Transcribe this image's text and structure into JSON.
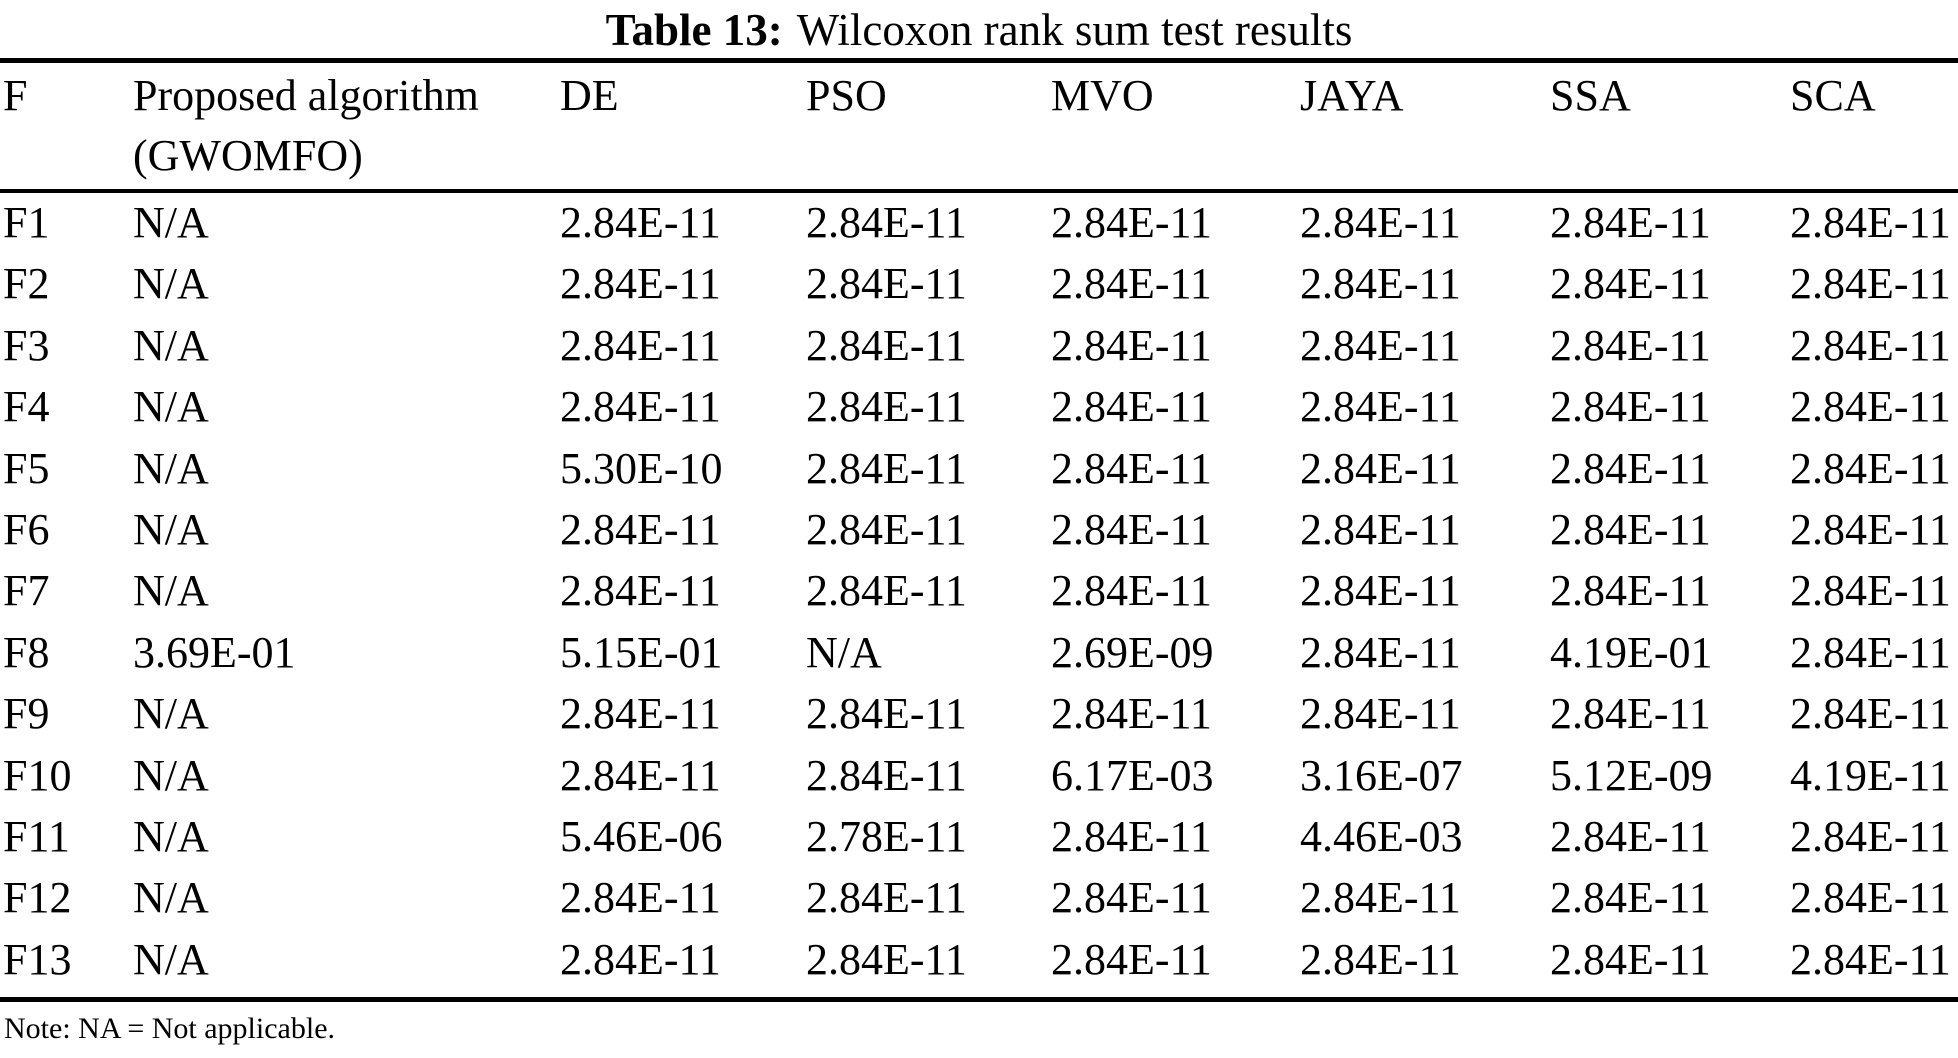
{
  "page": {
    "title_label": "Table 13:",
    "title_text": "Wilcoxon rank sum test results",
    "note": "Note: NA = Not applicable."
  },
  "table": {
    "header": {
      "f": "F",
      "proposed_line1": "Proposed algorithm",
      "proposed_line2": "(GWOMFO)",
      "cols": [
        "DE",
        "PSO",
        "MVO",
        "JAYA",
        "SSA",
        "SCA"
      ]
    },
    "rows": [
      {
        "cells": [
          "F1",
          "N/A",
          "2.84E-11",
          "2.84E-11",
          "2.84E-11",
          "2.84E-11",
          "2.84E-11",
          "2.84E-11"
        ]
      },
      {
        "cells": [
          "F2",
          "N/A",
          "2.84E-11",
          "2.84E-11",
          "2.84E-11",
          "2.84E-11",
          "2.84E-11",
          "2.84E-11"
        ]
      },
      {
        "cells": [
          "F3",
          "N/A",
          "2.84E-11",
          "2.84E-11",
          "2.84E-11",
          "2.84E-11",
          "2.84E-11",
          "2.84E-11"
        ]
      },
      {
        "cells": [
          "F4",
          "N/A",
          "2.84E-11",
          "2.84E-11",
          "2.84E-11",
          "2.84E-11",
          "2.84E-11",
          "2.84E-11"
        ]
      },
      {
        "cells": [
          "F5",
          "N/A",
          "5.30E-10",
          "2.84E-11",
          "2.84E-11",
          "2.84E-11",
          "2.84E-11",
          "2.84E-11"
        ]
      },
      {
        "cells": [
          "F6",
          "N/A",
          "2.84E-11",
          "2.84E-11",
          "2.84E-11",
          "2.84E-11",
          "2.84E-11",
          "2.84E-11"
        ]
      },
      {
        "cells": [
          "F7",
          "N/A",
          "2.84E-11",
          "2.84E-11",
          "2.84E-11",
          "2.84E-11",
          "2.84E-11",
          "2.84E-11"
        ]
      },
      {
        "cells": [
          "F8",
          "3.69E-01",
          "5.15E-01",
          "N/A",
          "2.69E-09",
          "2.84E-11",
          "4.19E-01",
          "2.84E-11"
        ]
      },
      {
        "cells": [
          "F9",
          "N/A",
          "2.84E-11",
          "2.84E-11",
          "2.84E-11",
          "2.84E-11",
          "2.84E-11",
          "2.84E-11"
        ]
      },
      {
        "cells": [
          "F10",
          "N/A",
          "2.84E-11",
          "2.84E-11",
          "6.17E-03",
          "3.16E-07",
          "5.12E-09",
          "4.19E-11"
        ]
      },
      {
        "cells": [
          "F11",
          "N/A",
          "5.46E-06",
          "2.78E-11",
          "2.84E-11",
          "4.46E-03",
          "2.84E-11",
          "2.84E-11"
        ]
      },
      {
        "cells": [
          "F12",
          "N/A",
          "2.84E-11",
          "2.84E-11",
          "2.84E-11",
          "2.84E-11",
          "2.84E-11",
          "2.84E-11"
        ]
      },
      {
        "cells": [
          "F13",
          "N/A",
          "2.84E-11",
          "2.84E-11",
          "2.84E-11",
          "2.84E-11",
          "2.84E-11",
          "2.84E-11"
        ]
      }
    ]
  }
}
